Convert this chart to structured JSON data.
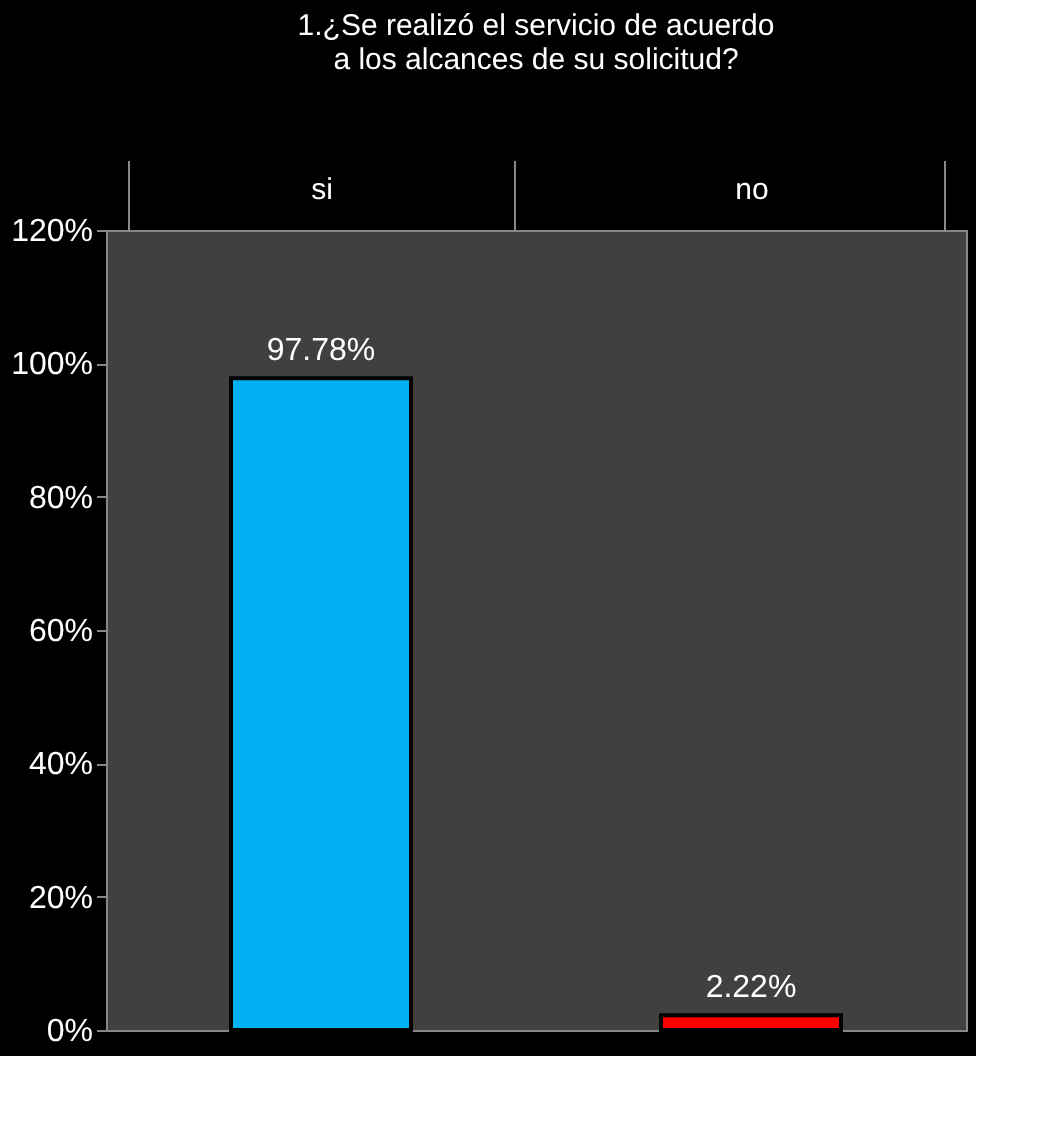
{
  "chart_data": {
    "type": "bar",
    "title": "1.¿Se realizó el servicio de acuerdo a los alcances de su solicitud?",
    "categories": [
      "si",
      "no"
    ],
    "values": [
      97.78,
      2.22
    ],
    "colors": [
      "#00b0f0",
      "#ff0000"
    ],
    "value_labels": [
      "97.78%",
      "2.22%"
    ],
    "ylim": [
      0,
      120
    ],
    "yticks": [
      {
        "value": 0,
        "label": "0%"
      },
      {
        "value": 20,
        "label": "20%"
      },
      {
        "value": 40,
        "label": "40%"
      },
      {
        "value": 60,
        "label": "60%"
      },
      {
        "value": 80,
        "label": "80%"
      },
      {
        "value": 100,
        "label": "100%"
      },
      {
        "value": 120,
        "label": "120%"
      }
    ],
    "grid": false
  }
}
